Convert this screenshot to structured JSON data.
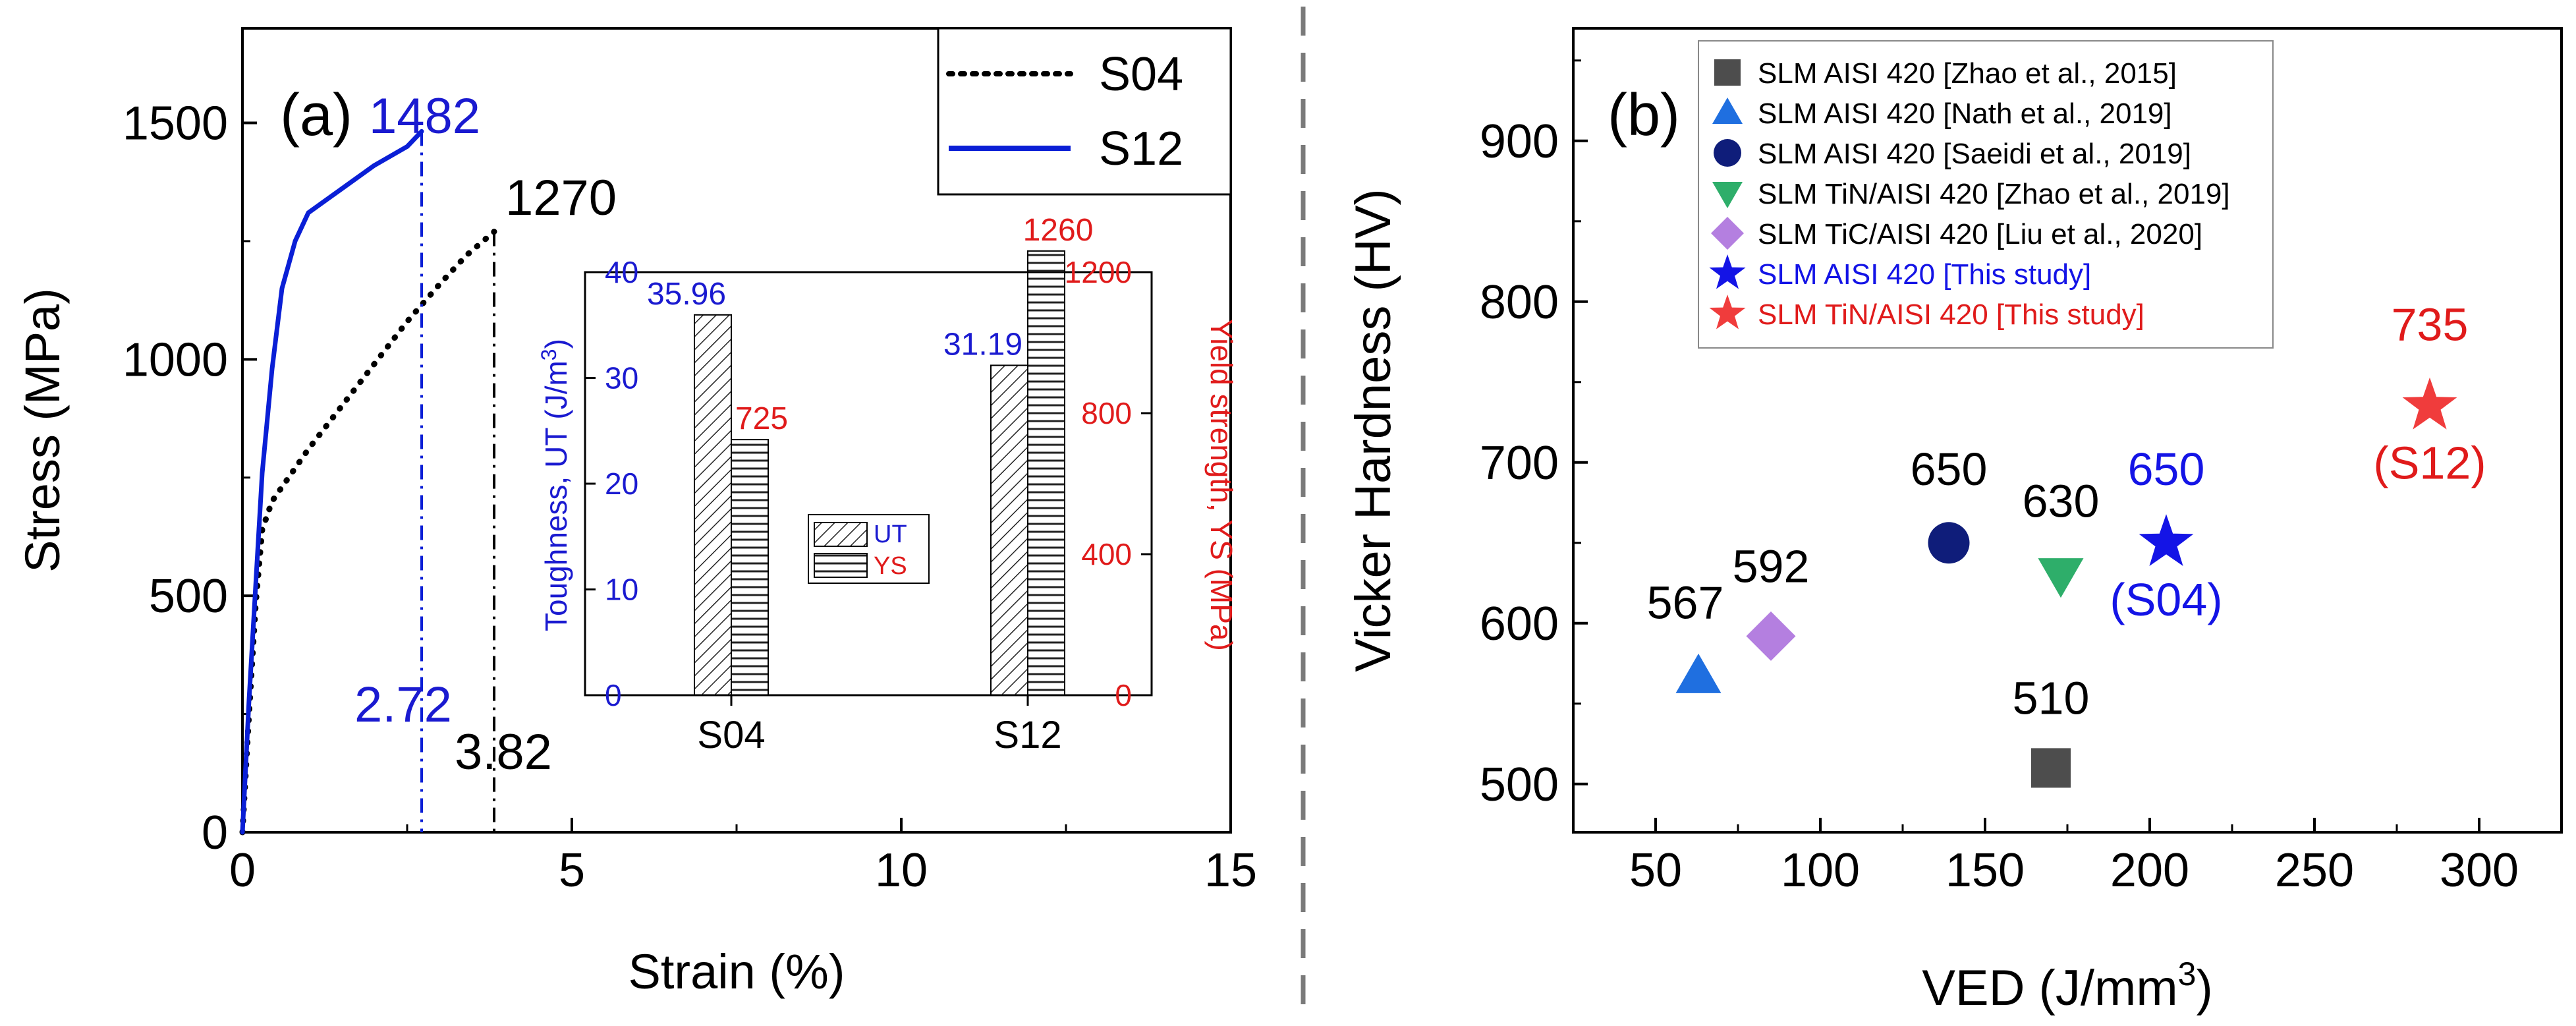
{
  "chart_data": [
    {
      "type": "line",
      "panel_label": "(a)",
      "xlabel": "Strain (%)",
      "ylabel": "Stress (MPa)",
      "xlim": [
        0,
        15
      ],
      "ylim": [
        0,
        1700
      ],
      "x_ticks": [
        "0",
        "5",
        "10",
        "15"
      ],
      "y_ticks": [
        "0",
        "500",
        "1000",
        "1500"
      ],
      "legend": "top-right",
      "series": [
        {
          "name": "S04",
          "style": "dotted",
          "color": "#000000",
          "x": [
            0,
            0.1,
            0.2,
            0.3,
            0.45,
            0.6,
            1.0,
            1.5,
            2.0,
            2.5,
            3.0,
            3.4,
            3.82
          ],
          "y": [
            0,
            250,
            480,
            640,
            700,
            730,
            810,
            900,
            990,
            1080,
            1160,
            1220,
            1270
          ]
        },
        {
          "name": "S12",
          "style": "solid",
          "color": "#0a1fd6",
          "x": [
            0,
            0.1,
            0.2,
            0.3,
            0.45,
            0.6,
            0.8,
            1.0,
            1.5,
            2.0,
            2.5,
            2.72
          ],
          "y": [
            0,
            280,
            520,
            760,
            980,
            1150,
            1250,
            1310,
            1360,
            1410,
            1450,
            1482
          ]
        }
      ],
      "annotations": {
        "s12_peak": "1482",
        "s04_peak": "1270",
        "s12_fracture_strain": "2.72",
        "s04_fracture_strain": "3.82"
      },
      "inset": {
        "type": "bar",
        "categories": [
          "S04",
          "S12"
        ],
        "series": [
          {
            "name": "UT",
            "axis": "left",
            "values": [
              35.96,
              31.19
            ],
            "labels": [
              "35.96",
              "31.19"
            ],
            "color": "#1a1ad0"
          },
          {
            "name": "YS",
            "axis": "right",
            "values": [
              725,
              1260
            ],
            "labels": [
              "725",
              "1260"
            ],
            "color": "#e01b1b"
          }
        ],
        "left_ylabel": "Toughness, UT (J/m",
        "left_ylabel_sup": "3",
        "left_ylabel_end": ")",
        "right_ylabel": "Yield strength, YS (MPa)",
        "left_ylim": [
          0,
          40
        ],
        "right_ylim": [
          0,
          1200
        ],
        "left_ticks": [
          "0",
          "10",
          "20",
          "30",
          "40"
        ],
        "right_ticks": [
          "0",
          "400",
          "800",
          "1200"
        ]
      }
    },
    {
      "type": "scatter",
      "panel_label": "(b)",
      "xlabel": "VED (J/mm",
      "xlabel_sup": "3",
      "xlabel_end": ")",
      "ylabel": "Vicker Hardness (HV)",
      "xlim": [
        25,
        325
      ],
      "ylim": [
        470,
        970
      ],
      "x_ticks": [
        "50",
        "100",
        "150",
        "200",
        "250",
        "300"
      ],
      "y_ticks": [
        "500",
        "600",
        "700",
        "800",
        "900"
      ],
      "legend": "top",
      "series": [
        {
          "name": "SLM AISI 420 [Zhao et al., 2015]",
          "marker": "square",
          "color": "#4d4d4d",
          "x": 170,
          "y": 510,
          "label": "510",
          "legend_color": "#000000"
        },
        {
          "name": "SLM AISI 420 [Nath et al., 2019]",
          "marker": "triangle-up",
          "color": "#1f6fe0",
          "x": 63,
          "y": 567,
          "label": "567",
          "legend_color": "#000000"
        },
        {
          "name": "SLM AISI 420 [Saeidi et al., 2019]",
          "marker": "circle",
          "color": "#0f1d7a",
          "x": 139,
          "y": 650,
          "label": "650",
          "legend_color": "#000000"
        },
        {
          "name": "SLM TiN/AISI 420 [Zhao et al., 2019]",
          "marker": "triangle-down",
          "color": "#2eae6a",
          "x": 173,
          "y": 630,
          "label": "630",
          "legend_color": "#000000"
        },
        {
          "name": "SLM TiC/AISI 420 [Liu et al., 2020]",
          "marker": "diamond",
          "color": "#b47fe0",
          "x": 85,
          "y": 592,
          "label": "592",
          "legend_color": "#000000"
        },
        {
          "name": "SLM AISI 420 [This study]",
          "marker": "star",
          "color": "#1414e6",
          "x": 205,
          "y": 650,
          "label": "650",
          "sublabel": "(S04)",
          "legend_color": "#1414e6"
        },
        {
          "name": "SLM TiN/AISI 420 [This study]",
          "marker": "star",
          "color": "#f03c3c",
          "x": 285,
          "y": 735,
          "label": "735",
          "sublabel": "(S12)",
          "legend_color": "#e01b1b"
        }
      ]
    }
  ]
}
